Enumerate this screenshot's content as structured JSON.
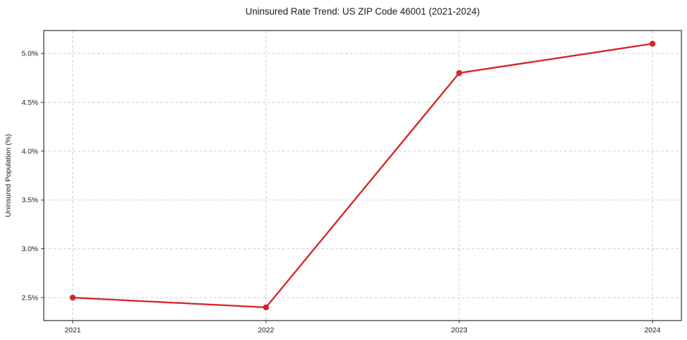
{
  "chart_data": {
    "type": "line",
    "title": "Uninsured Rate Trend: US ZIP Code 46001 (2021-2024)",
    "xlabel": "",
    "ylabel": "Uninsured Population (%)",
    "x": [
      2021,
      2022,
      2023,
      2024
    ],
    "xtick_labels": [
      "2021",
      "2022",
      "2023",
      "2024"
    ],
    "yticks": [
      2.5,
      3.0,
      3.5,
      4.0,
      4.5,
      5.0
    ],
    "ytick_labels": [
      "2.5%",
      "3.0%",
      "3.5%",
      "4.0%",
      "4.5%",
      "5.0%"
    ],
    "series": [
      {
        "name": "Uninsured Rate",
        "values": [
          2.5,
          2.4,
          4.8,
          5.1
        ]
      }
    ],
    "xlim": [
      2020.85,
      2024.15
    ],
    "ylim": [
      2.265,
      5.235
    ],
    "grid": true,
    "grid_style": "dashed",
    "legend": "none",
    "colors": {
      "line": "#d62728",
      "marker": "#d62728",
      "grid": "#c9c9c9",
      "spine": "#000000",
      "text": "#1a1a1a",
      "background": "#ffffff"
    }
  }
}
